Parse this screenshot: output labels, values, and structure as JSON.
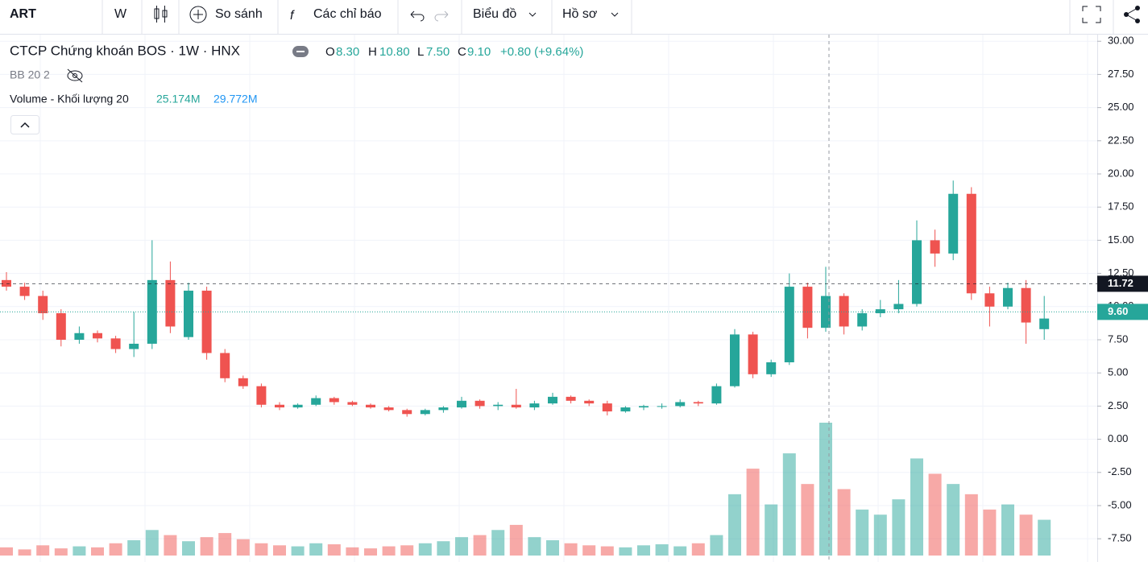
{
  "toolbar": {
    "symbol": "ART",
    "interval": "W",
    "compare": "So sánh",
    "indicators": "Các chỉ báo",
    "chart": "Biểu đồ",
    "profile": "Hồ sơ"
  },
  "legend": {
    "title": "CTCP Chứng khoán BOS · 1W · HNX",
    "o_key": "O",
    "o": "8.30",
    "h_key": "H",
    "h": "10.80",
    "l_key": "L",
    "l": "7.50",
    "c_key": "C",
    "c": "9.10",
    "change": "+0.80 (+9.64%)",
    "bb": "BB 20 2",
    "volume": "Volume - Khối lượng 20",
    "vol1": "25.174M",
    "vol2": "29.772M"
  },
  "chart_data": {
    "type": "candlestick",
    "up_color": "#26a69a",
    "down_color": "#ef5350",
    "ylim": [
      -9.25,
      30.5
    ],
    "yticks": [
      {
        "value": 30,
        "label": "30.00"
      },
      {
        "value": 27.5,
        "label": "27.50"
      },
      {
        "value": 25,
        "label": "25.00"
      },
      {
        "value": 22.5,
        "label": "22.50"
      },
      {
        "value": 20,
        "label": "20.00"
      },
      {
        "value": 17.5,
        "label": "17.50"
      },
      {
        "value": 15,
        "label": "15.00"
      },
      {
        "value": 12.5,
        "label": "12.50"
      },
      {
        "value": 10,
        "label": "10.00"
      },
      {
        "value": 7.5,
        "label": "7.50"
      },
      {
        "value": 5,
        "label": "5.00"
      },
      {
        "value": 2.5,
        "label": "2.50"
      },
      {
        "value": 0,
        "label": "0.00"
      },
      {
        "value": -2.5,
        "label": "-2.50"
      },
      {
        "value": -5,
        "label": "-5.00"
      },
      {
        "value": -7.5,
        "label": "-7.50"
      }
    ],
    "grid": true,
    "price_lines": [
      {
        "value": 11.72,
        "label": "11.72",
        "color": "#131722"
      },
      {
        "value": 9.6,
        "label": "9.60",
        "color": "#26a69a"
      }
    ],
    "open": [
      12.0,
      11.5,
      10.8,
      9.5,
      7.5,
      8.0,
      7.6,
      6.8,
      7.2,
      12.0,
      7.7,
      11.2,
      6.5,
      4.6,
      4.0,
      2.6,
      2.4,
      2.6,
      3.1,
      2.8,
      2.6,
      2.4,
      2.2,
      1.9,
      2.2,
      2.4,
      2.9,
      2.5,
      2.6,
      2.4,
      2.7,
      3.2,
      2.9,
      2.7,
      2.1,
      2.4,
      2.5,
      2.5,
      2.8,
      2.7,
      4.0,
      7.9,
      4.9,
      5.8,
      11.5,
      8.4,
      10.8,
      8.5,
      9.5,
      9.8,
      10.2,
      15.0,
      14.0,
      18.5,
      11.0,
      10.0,
      11.4,
      8.3
    ],
    "high": [
      12.6,
      11.8,
      11.2,
      9.8,
      8.5,
      8.2,
      7.8,
      9.6,
      15.0,
      13.4,
      11.8,
      11.5,
      6.8,
      4.8,
      4.2,
      2.8,
      2.7,
      3.3,
      3.2,
      2.9,
      2.7,
      2.5,
      2.3,
      2.3,
      2.5,
      3.2,
      3.0,
      2.8,
      3.8,
      2.9,
      3.5,
      3.3,
      3.0,
      2.9,
      2.5,
      2.6,
      2.7,
      3.0,
      2.9,
      4.2,
      8.3,
      8.1,
      6.0,
      12.5,
      11.8,
      13.0,
      11.0,
      9.8,
      10.5,
      12.0,
      16.5,
      15.8,
      19.5,
      19.0,
      11.5,
      11.8,
      12.0,
      10.8
    ],
    "low": [
      11.2,
      10.5,
      9.0,
      7.0,
      7.2,
      7.3,
      6.5,
      6.2,
      6.8,
      8.0,
      7.5,
      6.0,
      4.3,
      3.8,
      2.4,
      2.2,
      2.3,
      2.5,
      2.6,
      2.5,
      2.3,
      2.1,
      1.7,
      1.8,
      2.0,
      2.3,
      2.3,
      2.2,
      2.3,
      2.2,
      2.6,
      2.7,
      2.5,
      1.8,
      2.0,
      2.2,
      2.3,
      2.4,
      2.5,
      2.6,
      3.9,
      4.6,
      4.7,
      5.6,
      7.6,
      8.1,
      7.9,
      8.2,
      9.2,
      9.5,
      10.0,
      13.0,
      13.5,
      10.5,
      8.5,
      9.8,
      7.2,
      7.5
    ],
    "close": [
      11.5,
      10.8,
      9.5,
      7.5,
      8.0,
      7.6,
      6.8,
      7.2,
      12.0,
      8.5,
      11.2,
      6.5,
      4.6,
      4.0,
      2.6,
      2.4,
      2.6,
      3.1,
      2.8,
      2.6,
      2.4,
      2.2,
      1.9,
      2.2,
      2.4,
      2.9,
      2.5,
      2.6,
      2.4,
      2.7,
      3.2,
      2.9,
      2.7,
      2.1,
      2.4,
      2.5,
      2.5,
      2.8,
      2.7,
      4.0,
      7.9,
      4.9,
      5.8,
      11.5,
      8.4,
      10.8,
      8.5,
      9.5,
      9.8,
      10.2,
      15.0,
      14.0,
      18.5,
      11.0,
      10.0,
      11.4,
      8.8,
      9.1
    ],
    "volume": [
      8,
      6,
      10,
      7,
      9,
      8,
      12,
      15,
      25,
      20,
      14,
      18,
      22,
      16,
      12,
      10,
      9,
      12,
      11,
      8,
      7,
      9,
      10,
      12,
      14,
      18,
      20,
      25,
      30,
      18,
      15,
      12,
      10,
      9,
      8,
      10,
      11,
      9,
      12,
      20,
      60,
      85,
      50,
      100,
      70,
      130,
      65,
      45,
      40,
      55,
      95,
      80,
      70,
      60,
      45,
      50,
      40,
      35
    ],
    "volume_ylim": [
      0,
      130
    ]
  }
}
